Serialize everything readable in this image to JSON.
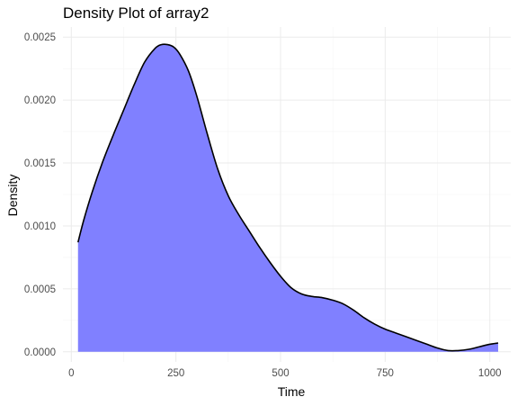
{
  "chart_data": {
    "type": "area",
    "title": "Density Plot of array2",
    "xlabel": "Time",
    "ylabel": "Density",
    "xlim": [
      -20,
      1050
    ],
    "ylim": [
      -8e-05,
      0.00258
    ],
    "x_ticks": [
      0,
      250,
      500,
      750,
      1000
    ],
    "x_tick_labels": [
      "0",
      "250",
      "500",
      "750",
      "1000"
    ],
    "y_ticks": [
      0,
      0.0005,
      0.001,
      0.0015,
      0.002,
      0.0025
    ],
    "y_tick_labels": [
      "0.0000",
      "0.0005",
      "0.0010",
      "0.0015",
      "0.0020",
      "0.0025"
    ],
    "grid": true,
    "legend": "none",
    "fill_color": "#8080ff",
    "line_color": "#000000",
    "series": [
      {
        "x": [
          16,
          30,
          50,
          75,
          100,
          125,
          150,
          175,
          200,
          215,
          230,
          245,
          260,
          280,
          300,
          325,
          350,
          375,
          400,
          425,
          450,
          475,
          500,
          525,
          550,
          575,
          600,
          625,
          650,
          675,
          700,
          725,
          750,
          775,
          800,
          825,
          850,
          875,
          900,
          925,
          950,
          975,
          1000,
          1020
        ],
        "y": [
          0.00087,
          0.00105,
          0.00127,
          0.00151,
          0.00172,
          0.00192,
          0.00212,
          0.0023,
          0.00241,
          0.00244,
          0.00244,
          0.00242,
          0.00236,
          0.00223,
          0.00203,
          0.00173,
          0.00145,
          0.00124,
          0.00109,
          0.00096,
          0.00083,
          0.00071,
          0.0006,
          0.00051,
          0.00046,
          0.00044,
          0.00043,
          0.00041,
          0.00038,
          0.00033,
          0.00027,
          0.00022,
          0.00018,
          0.00015,
          0.00012,
          9e-05,
          6e-05,
          3e-05,
          1e-05,
          1e-05,
          2e-05,
          4e-05,
          6e-05,
          7e-05
        ]
      }
    ]
  }
}
